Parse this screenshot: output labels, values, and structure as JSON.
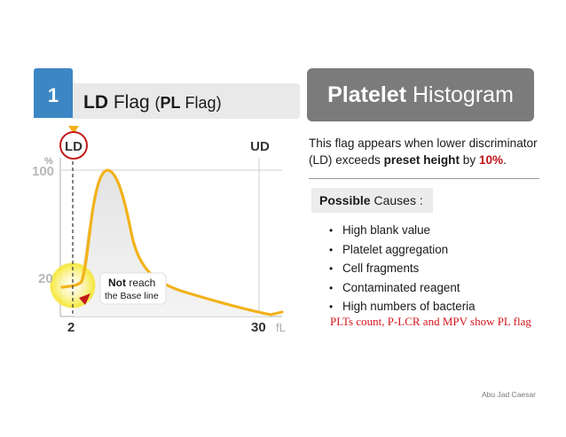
{
  "header": {
    "number": "1",
    "flag_title_bold": "LD",
    "flag_title_rest": " Flag ",
    "flag_paren_open": "(",
    "flag_paren_bold": "PL",
    "flag_paren_rest": " Flag)",
    "banner_bold": "Platelet",
    "banner_rest": " Histogram"
  },
  "description": {
    "part1": "This flag appears when lower discriminator (LD) exceeds ",
    "bold": "preset height",
    "part2": " by ",
    "red": "10%",
    "part3": "."
  },
  "causes": {
    "title_bold": "Possible",
    "title_rest": " Causes :",
    "items": [
      "High blank value",
      "Platelet aggregation",
      "Cell fragments",
      "Contaminated reagent",
      "High numbers of bacteria"
    ],
    "bullet": "•"
  },
  "footnote": "PLTs count, P-LCR and MPV show PL flag",
  "author": "Abu Jad Caesar",
  "diagram": {
    "ld_label": "LD",
    "ud_label": "UD",
    "y_unit": "%",
    "y_top": "100",
    "y_mid": "20",
    "x_left": "2",
    "x_right": "30",
    "x_unit": "fL",
    "callout_bold": "Not",
    "callout_rest": " reach",
    "callout_line2": "the Base line",
    "colors": {
      "curve": "#f2b21b",
      "ld_circle": "#c41a1a",
      "marker": "#f2b21b",
      "highlight": "#f7ea3a",
      "arrow": "#c41a1a"
    }
  }
}
